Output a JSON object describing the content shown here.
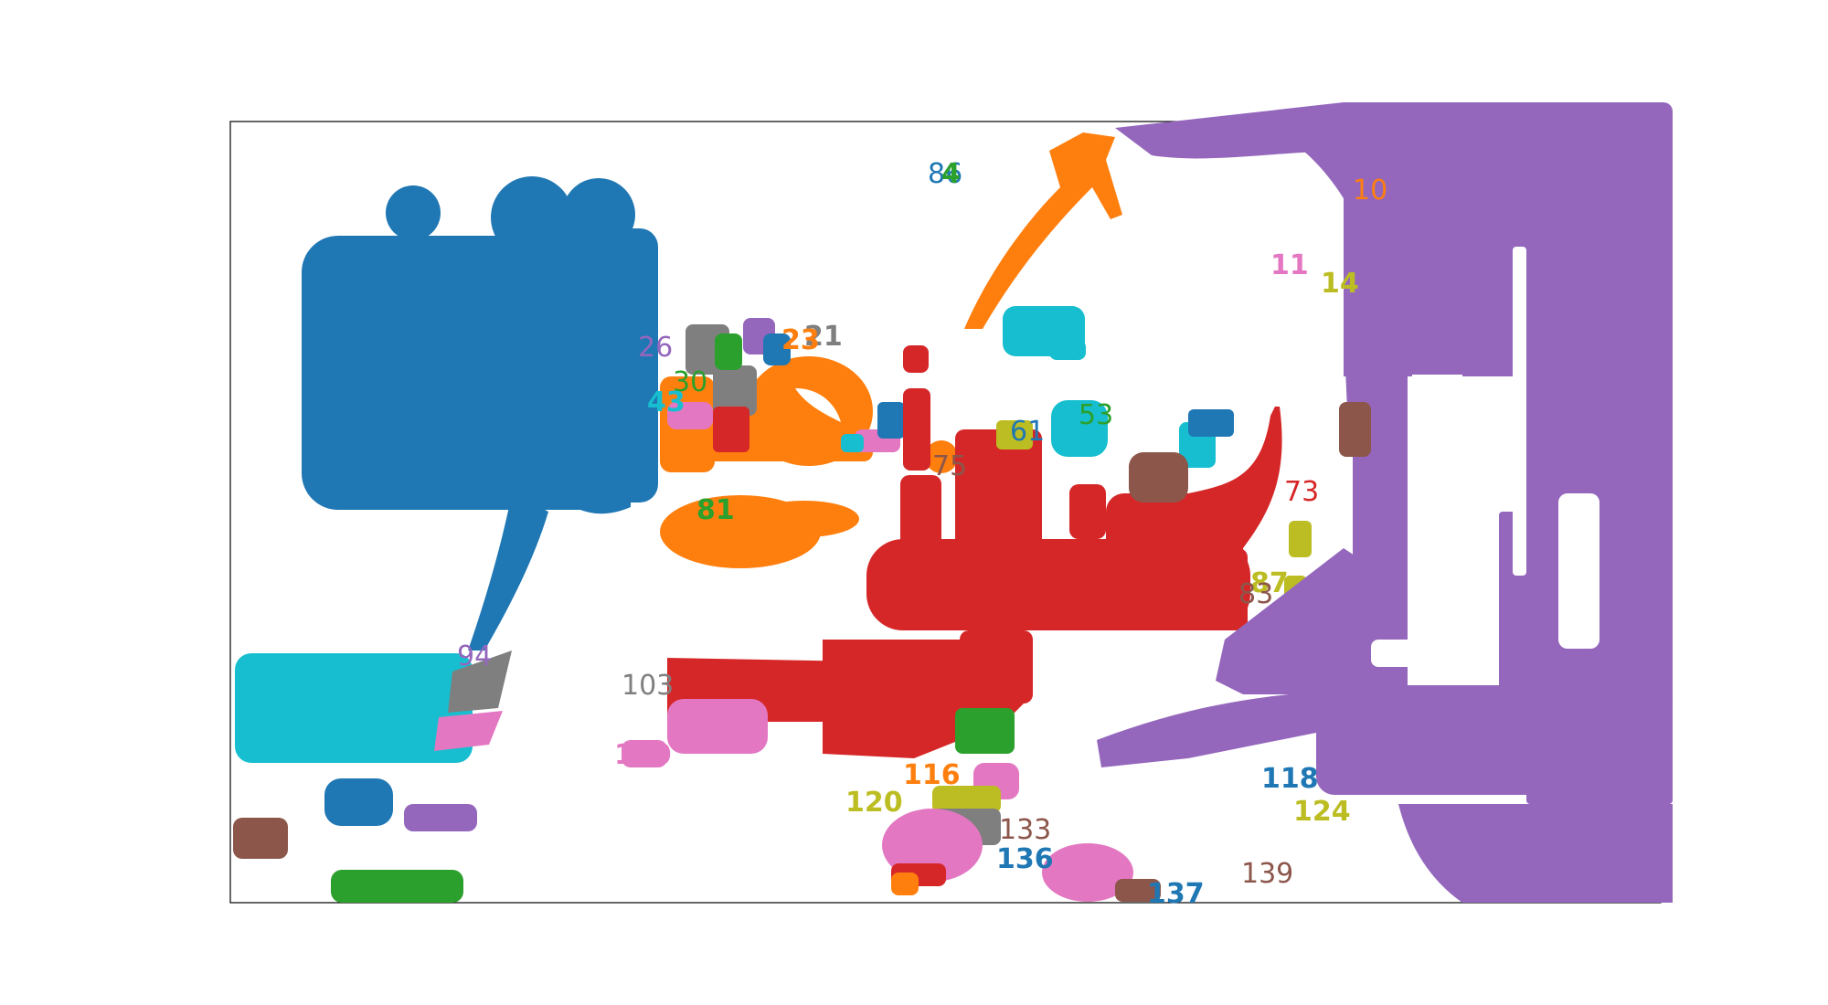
{
  "palette": {
    "blue": "#1f77b4",
    "orange": "#ff7f0e",
    "green": "#2ca02c",
    "red": "#d62728",
    "purple": "#9467bd",
    "brown": "#8c564b",
    "pink": "#e377c2",
    "gray": "#7f7f7f",
    "olive": "#bcbd22",
    "cyan": "#17becf",
    "frame": "#000000",
    "background": "#ffffff"
  },
  "labels": [
    {
      "text": "86",
      "color": "blue"
    },
    {
      "text": "4",
      "color": "green"
    },
    {
      "text": "10",
      "color": "orange"
    },
    {
      "text": "11",
      "color": "pink"
    },
    {
      "text": "14",
      "color": "olive"
    },
    {
      "text": "26",
      "color": "purple"
    },
    {
      "text": "21",
      "color": "gray"
    },
    {
      "text": "23",
      "color": "orange"
    },
    {
      "text": "30",
      "color": "green"
    },
    {
      "text": "43",
      "color": "cyan"
    },
    {
      "text": "53",
      "color": "green"
    },
    {
      "text": "61",
      "color": "blue"
    },
    {
      "text": "73",
      "color": "red"
    },
    {
      "text": "75",
      "color": "brown"
    },
    {
      "text": "81",
      "color": "green"
    },
    {
      "text": "87",
      "color": "olive"
    },
    {
      "text": "83",
      "color": "brown"
    },
    {
      "text": "94",
      "color": "purple"
    },
    {
      "text": "103",
      "color": "gray"
    },
    {
      "text": "110",
      "color": "pink"
    },
    {
      "text": "116",
      "color": "orange"
    },
    {
      "text": "118",
      "color": "blue"
    },
    {
      "text": "120",
      "color": "olive"
    },
    {
      "text": "124",
      "color": "olive"
    },
    {
      "text": "133",
      "color": "brown"
    },
    {
      "text": "136",
      "color": "blue"
    },
    {
      "text": "137",
      "color": "blue"
    },
    {
      "text": "139",
      "color": "brown"
    }
  ]
}
